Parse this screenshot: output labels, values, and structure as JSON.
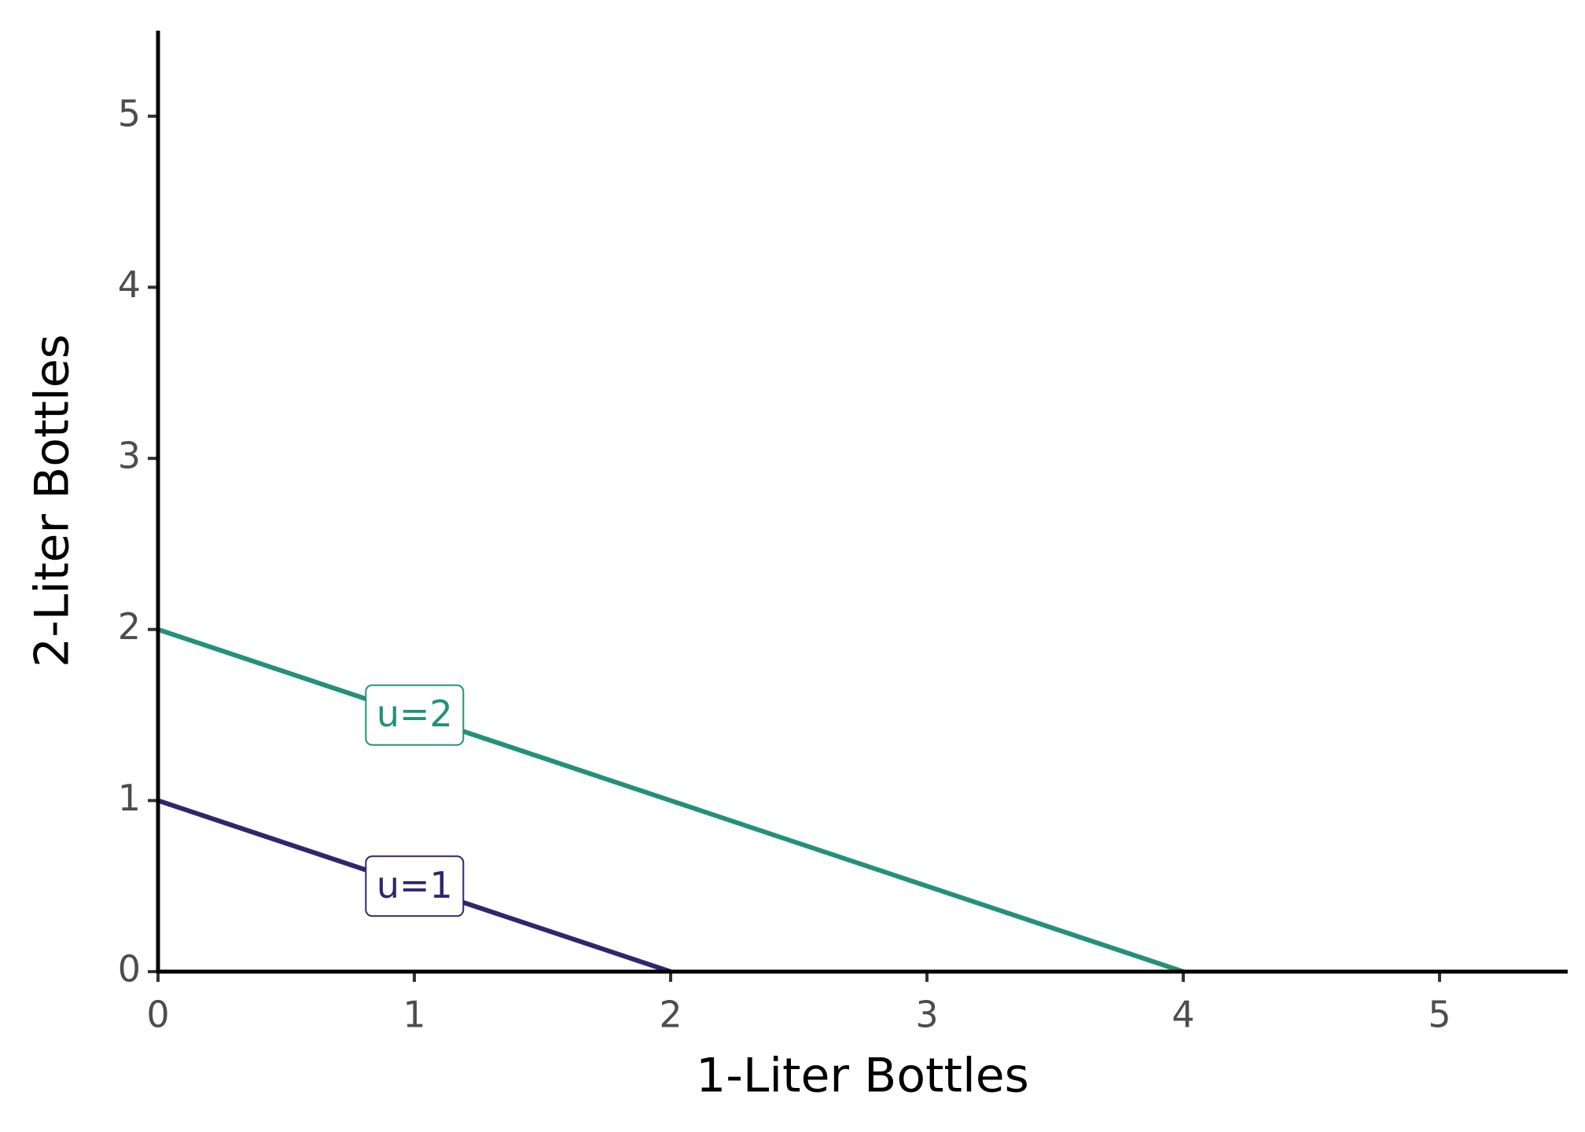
{
  "chart_data": {
    "type": "line",
    "x_label": "1-Liter Bottles",
    "y_label": "2-Liter Bottles",
    "series": [
      {
        "name": "u=1",
        "color": "#31256f",
        "x": [
          0,
          2
        ],
        "values": [
          1,
          0
        ]
      },
      {
        "name": "u=2",
        "color": "#23917a",
        "x": [
          0,
          4
        ],
        "values": [
          2,
          0
        ]
      }
    ],
    "xlim": [
      0,
      5.5
    ],
    "ylim": [
      0,
      5.5
    ],
    "xticks": [
      0,
      1,
      2,
      3,
      4,
      5
    ],
    "yticks": [
      0,
      1,
      2,
      3,
      4,
      5
    ],
    "grid": false
  }
}
